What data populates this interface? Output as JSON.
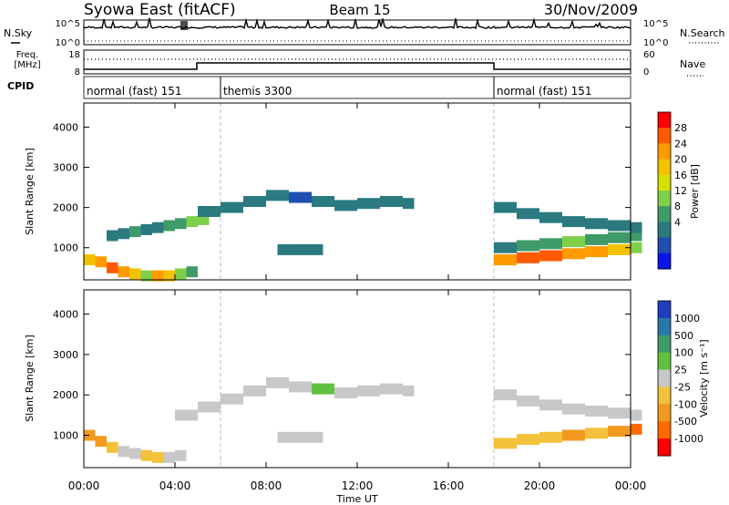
{
  "header": {
    "station": "Syowa East (fitACF)",
    "beam": "Beam 15",
    "date": "30/Nov/2009"
  },
  "noise_panel": {
    "left_label": "N.Sky",
    "right_label": "N.Search",
    "left_ticks": [
      "10^5",
      "10^0"
    ],
    "right_ticks": [
      "10^5",
      "10^0"
    ]
  },
  "freq_panel": {
    "left_label_line1": "Freq.",
    "left_label_line2": "[MHz]",
    "right_label": "Nave",
    "left_ticks": [
      "18",
      "8"
    ],
    "right_ticks": [
      "60",
      "0"
    ]
  },
  "cpid": {
    "label": "CPID",
    "segments": [
      {
        "name": "normal (fast) 151",
        "start_hour": 0,
        "end_hour": 6
      },
      {
        "name": "themis 3300",
        "start_hour": 6,
        "end_hour": 18
      },
      {
        "name": "normal (fast) 151",
        "start_hour": 18,
        "end_hour": 24
      }
    ]
  },
  "x_axis": {
    "label": "Time UT",
    "ticks": [
      "00:00",
      "04:00",
      "08:00",
      "12:00",
      "16:00",
      "20:00",
      "00:00"
    ]
  },
  "power_panel": {
    "ylabel": "Slant Range [km]",
    "yticks": [
      "4000",
      "3000",
      "2000",
      "1000"
    ],
    "colorbar": {
      "label": "Power [dB]",
      "ticks": [
        "28",
        "24",
        "20",
        "16",
        "12",
        "8",
        "4"
      ],
      "colors": [
        "#ff0000",
        "#ff5a00",
        "#ff9a00",
        "#f2c200",
        "#d8e000",
        "#7ed04a",
        "#3f9a6a",
        "#2a7a80",
        "#1f4fb0",
        "#0a14e8"
      ]
    }
  },
  "velocity_panel": {
    "ylabel": "Slant Range [km]",
    "yticks": [
      "4000",
      "3000",
      "2000",
      "1000"
    ],
    "colorbar": {
      "label": "Velocity [m s⁻¹]",
      "ticks": [
        "1000",
        "500",
        "100",
        "25",
        "-25",
        "-100",
        "-500",
        "-1000"
      ],
      "colors": [
        "#1f3fc0",
        "#2a78a8",
        "#3f9a6a",
        "#60c040",
        "#c8c8c8",
        "#f4c23a",
        "#f29a20",
        "#ff6a00",
        "#ff0000"
      ]
    }
  },
  "chart_data": [
    {
      "type": "heatmap",
      "title": "Power",
      "xlabel": "Time UT",
      "ylabel": "Slant Range [km]",
      "xlim": [
        0,
        24
      ],
      "ylim": [
        200,
        4600
      ],
      "colorbar_label": "Power [dB]",
      "colorbar_range": [
        0,
        32
      ],
      "series": [
        {
          "x": [
            0,
            0.5,
            1,
            1.5,
            2,
            2.5,
            3,
            3.5,
            4,
            4.5
          ],
          "y": [
            700,
            650,
            500,
            400,
            350,
            300,
            300,
            300,
            350,
            400
          ],
          "values": [
            20,
            24,
            28,
            24,
            20,
            16,
            24,
            20,
            16,
            12
          ]
        },
        {
          "x": [
            1,
            1.5,
            2,
            2.5,
            3,
            3.5,
            4,
            4.5,
            5
          ],
          "y": [
            1300,
            1350,
            1400,
            1450,
            1500,
            1550,
            1600,
            1650,
            1700
          ],
          "values": [
            8,
            8,
            12,
            8,
            8,
            12,
            12,
            16,
            16
          ]
        },
        {
          "x": [
            5,
            6,
            7,
            8,
            9,
            10,
            11,
            12,
            13,
            14
          ],
          "y": [
            1900,
            2000,
            2150,
            2300,
            2250,
            2150,
            2050,
            2100,
            2150,
            2100
          ],
          "values": [
            8,
            8,
            8,
            8,
            4,
            8,
            8,
            8,
            8,
            8
          ]
        },
        {
          "x": [
            8.5,
            9,
            9.5,
            10
          ],
          "y": [
            950,
            950,
            950,
            950
          ],
          "values": [
            8,
            8,
            8,
            8
          ]
        },
        {
          "x": [
            18,
            19,
            20,
            21,
            22,
            23,
            24
          ],
          "y": [
            700,
            750,
            800,
            850,
            900,
            950,
            1000
          ],
          "values": [
            24,
            28,
            28,
            24,
            24,
            20,
            16
          ]
        },
        {
          "x": [
            18,
            19,
            20,
            21,
            22,
            23,
            24
          ],
          "y": [
            1000,
            1050,
            1100,
            1150,
            1200,
            1250,
            1300
          ],
          "values": [
            8,
            12,
            12,
            16,
            12,
            12,
            12
          ]
        },
        {
          "x": [
            18,
            19,
            20,
            21,
            22,
            23,
            24
          ],
          "y": [
            2000,
            1850,
            1750,
            1650,
            1600,
            1550,
            1500
          ],
          "values": [
            8,
            8,
            8,
            8,
            8,
            8,
            8
          ]
        }
      ]
    },
    {
      "type": "heatmap",
      "title": "Velocity",
      "xlabel": "Time UT",
      "ylabel": "Slant Range [km]",
      "xlim": [
        0,
        24
      ],
      "ylim": [
        200,
        4600
      ],
      "colorbar_label": "Velocity [m s⁻¹]",
      "colorbar_range": [
        -1000,
        1000
      ],
      "series": [
        {
          "x": [
            0,
            0.5,
            1,
            1.5,
            2,
            2.5,
            3,
            3.5,
            4
          ],
          "y": [
            1000,
            850,
            700,
            600,
            550,
            500,
            450,
            450,
            500
          ],
          "values": [
            -500,
            -500,
            -100,
            -25,
            -25,
            -100,
            -100,
            -25,
            -25
          ]
        },
        {
          "x": [
            4,
            5,
            6,
            7,
            8,
            9,
            10,
            11,
            12,
            13,
            14
          ],
          "y": [
            1500,
            1700,
            1900,
            2100,
            2300,
            2200,
            2150,
            2050,
            2100,
            2150,
            2100
          ],
          "values": [
            0,
            0,
            0,
            0,
            0,
            0,
            25,
            0,
            0,
            0,
            0
          ]
        },
        {
          "x": [
            8.5,
            9,
            9.5,
            10
          ],
          "y": [
            950,
            950,
            950,
            950
          ],
          "values": [
            0,
            0,
            0,
            0
          ]
        },
        {
          "x": [
            18,
            19,
            20,
            21,
            22,
            23,
            24
          ],
          "y": [
            800,
            900,
            950,
            1000,
            1050,
            1100,
            1150
          ],
          "values": [
            -100,
            -100,
            -100,
            -500,
            -100,
            -500,
            -1000
          ]
        },
        {
          "x": [
            18,
            19,
            20,
            21,
            22,
            23,
            24
          ],
          "y": [
            2000,
            1850,
            1750,
            1650,
            1600,
            1550,
            1500
          ],
          "values": [
            0,
            0,
            0,
            0,
            0,
            0,
            0
          ]
        }
      ]
    }
  ]
}
